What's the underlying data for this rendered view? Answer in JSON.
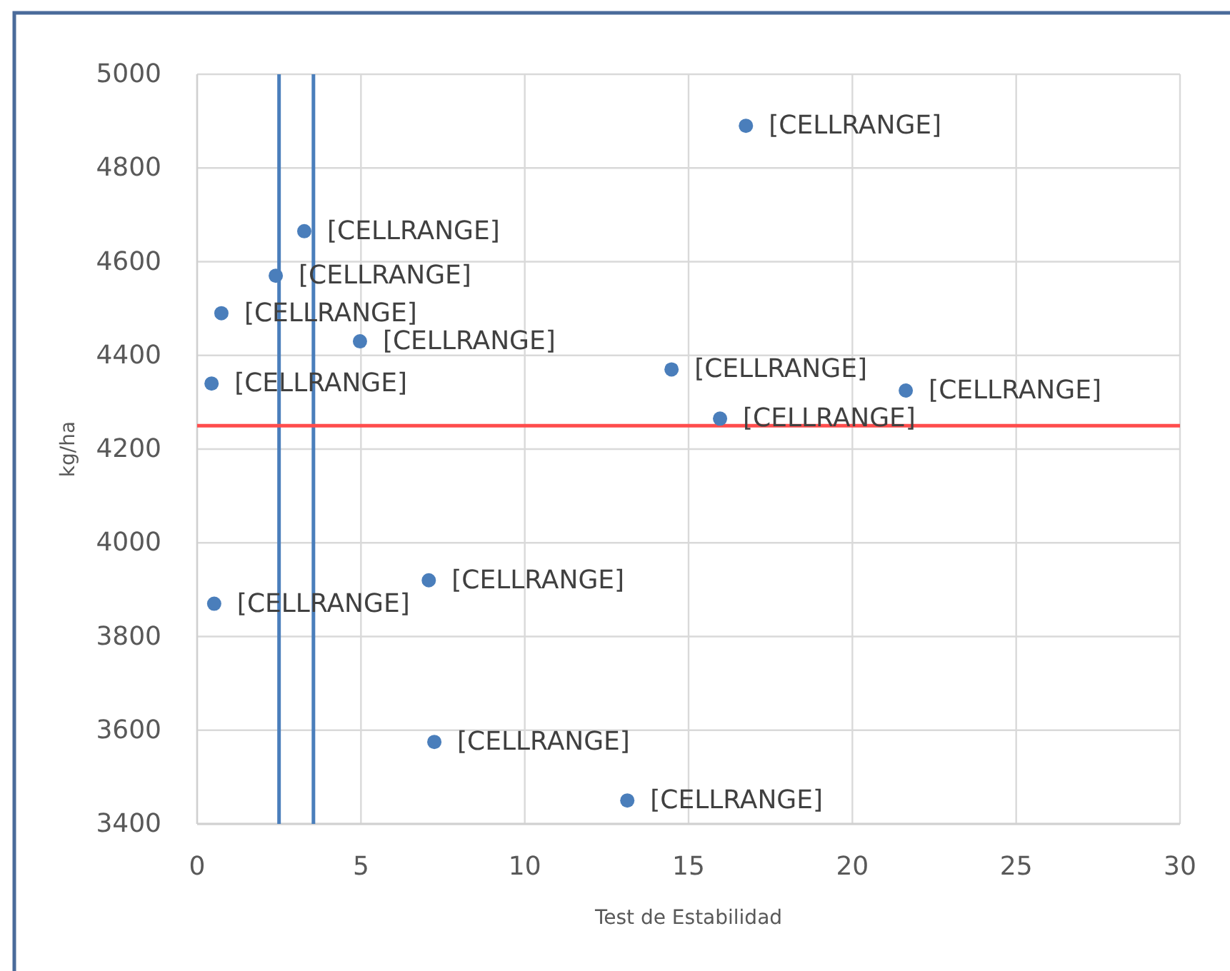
{
  "chart_data": {
    "type": "scatter",
    "xlabel": "Test de Estabilidad",
    "ylabel": "kg/ha",
    "x": [
      16.75,
      3.27,
      2.4,
      0.74,
      4.97,
      0.44,
      14.48,
      21.63,
      15.96,
      0.52,
      7.07,
      7.24,
      13.13
    ],
    "values": [
      4890,
      4665,
      4570,
      4490,
      4430,
      4340,
      4370,
      4325,
      4265,
      3870,
      3920,
      3575,
      3450
    ],
    "value_labels": [
      "[CELLRANGE]",
      "[CELLRANGE]",
      "[CELLRANGE]",
      "[CELLRANGE]",
      "[CELLRANGE]",
      "[CELLRANGE]",
      "[CELLRANGE]",
      "[CELLRANGE]",
      "[CELLRANGE]",
      "[CELLRANGE]",
      "[CELLRANGE]",
      "[CELLRANGE]",
      "[CELLRANGE]"
    ],
    "color": "#4a7ebb",
    "marker": "circle",
    "xlim": [
      0,
      30
    ],
    "ylim": [
      3400,
      5000
    ],
    "xticks": [
      0,
      5,
      10,
      15,
      20,
      25,
      30
    ],
    "yticks": [
      3400,
      3600,
      3800,
      4000,
      4200,
      4400,
      4600,
      4800,
      5000
    ],
    "grid": true,
    "ref_lines": [
      {
        "axis": "x",
        "value": 2.5,
        "color": "#4a7ebb"
      },
      {
        "axis": "x",
        "value": 3.55,
        "color": "#4a7ebb"
      },
      {
        "axis": "y",
        "value": 4250,
        "color": "#ff4d4d"
      }
    ]
  }
}
